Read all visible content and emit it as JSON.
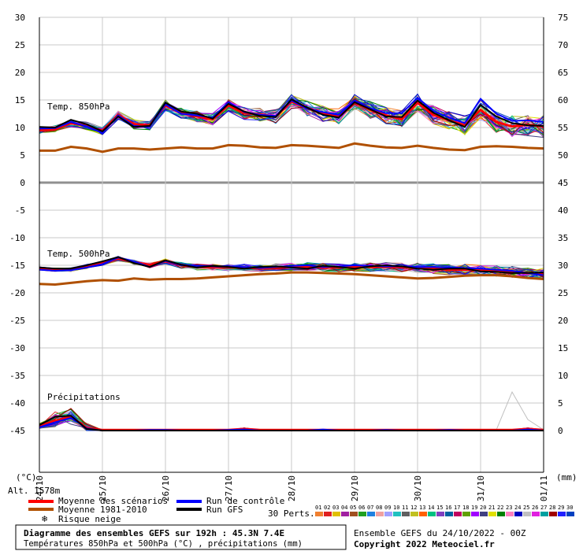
{
  "chart_data": {
    "type": "line",
    "title": "Diagramme des ensembles GEFS sur 192h : 45.3N 7.4E",
    "subtitle": "Températures 850hPa et 500hPa (°C) , précipitations (mm)",
    "run_info": "Ensemble GEFS du 24/10/2022 - 00Z",
    "copyright": "Copyright 2022 Meteociel.fr",
    "altitude": "Alt. 1578m",
    "ylabel_left": "(°C)",
    "ylabel_right": "(mm)",
    "panel_labels": {
      "t850": "Temp. 850hPa",
      "t500": "Temp. 500hPa",
      "precip": "Précipitations"
    },
    "x_tick_labels": [
      "24/10",
      "25/10",
      "26/10",
      "27/10",
      "28/10",
      "29/10",
      "30/10",
      "31/10",
      "01/11"
    ],
    "left_ticks": [
      30,
      25,
      20,
      15,
      10,
      5,
      0,
      -5,
      -10,
      -15,
      -20,
      -25,
      -30,
      -35,
      -40,
      -45
    ],
    "right_ticks": [
      75,
      70,
      65,
      60,
      55,
      50,
      45,
      40,
      35,
      30,
      25,
      20,
      15,
      10,
      5,
      0
    ],
    "ylim_left": [
      -45,
      30
    ],
    "x_hours": [
      0,
      6,
      12,
      18,
      24,
      30,
      36,
      42,
      48,
      54,
      60,
      66,
      72,
      78,
      84,
      90,
      96,
      102,
      108,
      114,
      120,
      126,
      132,
      138,
      144,
      150,
      156,
      162,
      168,
      174,
      180,
      186,
      192
    ],
    "series": [
      {
        "name": "Moyenne des scénarios",
        "role": "t850",
        "color": "#ff0000",
        "values": [
          9.5,
          9.7,
          10.8,
          10.3,
          9.4,
          12.3,
          10.6,
          10.4,
          14.0,
          12.6,
          12.0,
          11.5,
          14.0,
          12.6,
          12.4,
          12.0,
          14.7,
          13.5,
          12.5,
          12.0,
          14.5,
          13.2,
          12.2,
          11.5,
          14.5,
          12.3,
          11.3,
          10.4,
          13.2,
          11.0,
          10.2,
          10.5,
          10.2
        ]
      },
      {
        "name": "Moyenne 1981-2010",
        "role": "t850",
        "color": "#b05000",
        "values": [
          5.8,
          5.8,
          6.5,
          6.2,
          5.6,
          6.2,
          6.2,
          6.0,
          6.2,
          6.4,
          6.2,
          6.2,
          6.8,
          6.7,
          6.4,
          6.3,
          6.8,
          6.7,
          6.5,
          6.3,
          7.1,
          6.7,
          6.4,
          6.3,
          6.7,
          6.3,
          6.0,
          5.9,
          6.5,
          6.6,
          6.5,
          6.3,
          6.2
        ]
      },
      {
        "name": "Run de contrôle",
        "role": "t850",
        "color": "#0000ff",
        "values": [
          9.8,
          9.9,
          11.0,
          10.2,
          9.0,
          12.2,
          10.3,
          10.1,
          14.2,
          12.5,
          12.2,
          11.8,
          14.6,
          12.8,
          12.3,
          12.1,
          14.9,
          13.4,
          12.8,
          12.3,
          14.9,
          13.5,
          12.6,
          12.6,
          15.4,
          13.0,
          11.8,
          10.8,
          15.2,
          12.5,
          11.2,
          11.3,
          11.0
        ]
      },
      {
        "name": "Run GFS",
        "role": "t850",
        "color": "#000000",
        "values": [
          10.1,
          10.0,
          11.4,
          10.6,
          9.3,
          12.0,
          10.1,
          10.3,
          14.5,
          12.9,
          12.5,
          11.6,
          14.3,
          12.9,
          12.1,
          11.9,
          15.1,
          13.6,
          12.3,
          11.8,
          14.6,
          13.3,
          12.0,
          11.9,
          14.9,
          12.7,
          11.3,
          10.1,
          14.1,
          12.0,
          10.8,
          10.4,
          10.3
        ]
      },
      {
        "name": "Moyenne des scénarios",
        "role": "t500",
        "color": "#ff0000",
        "values": [
          -15.6,
          -15.8,
          -15.8,
          -15.2,
          -14.6,
          -13.8,
          -14.4,
          -15.0,
          -14.3,
          -15.0,
          -15.3,
          -15.4,
          -15.4,
          -15.4,
          -15.6,
          -15.4,
          -15.3,
          -15.2,
          -15.4,
          -15.4,
          -15.3,
          -15.3,
          -15.3,
          -15.4,
          -15.5,
          -15.6,
          -15.8,
          -15.8,
          -15.9,
          -16.0,
          -16.2,
          -16.4,
          -16.6
        ]
      },
      {
        "name": "Moyenne 1981-2010",
        "role": "t500",
        "color": "#b05000",
        "values": [
          -18.4,
          -18.5,
          -18.2,
          -17.9,
          -17.7,
          -17.8,
          -17.4,
          -17.6,
          -17.5,
          -17.5,
          -17.4,
          -17.2,
          -17.0,
          -16.8,
          -16.6,
          -16.5,
          -16.3,
          -16.3,
          -16.4,
          -16.5,
          -16.6,
          -16.8,
          -17.0,
          -17.2,
          -17.4,
          -17.3,
          -17.1,
          -16.9,
          -16.8,
          -16.8,
          -17.0,
          -17.3,
          -17.5
        ]
      },
      {
        "name": "Run de contrôle",
        "role": "t500",
        "color": "#0000ff",
        "values": [
          -15.8,
          -16.0,
          -15.9,
          -15.4,
          -14.8,
          -13.6,
          -14.3,
          -15.3,
          -14.2,
          -15.0,
          -15.1,
          -15.2,
          -15.3,
          -15.3,
          -15.5,
          -15.3,
          -15.1,
          -15.0,
          -15.3,
          -15.2,
          -15.0,
          -15.1,
          -15.2,
          -15.2,
          -15.3,
          -15.3,
          -15.4,
          -15.5,
          -15.6,
          -15.8,
          -16.0,
          -16.4,
          -16.8
        ]
      },
      {
        "name": "Run GFS",
        "role": "t500",
        "color": "#000000",
        "values": [
          -15.4,
          -15.6,
          -15.6,
          -15.0,
          -14.3,
          -13.5,
          -14.6,
          -15.3,
          -14.1,
          -14.9,
          -15.4,
          -15.1,
          -15.3,
          -15.6,
          -15.3,
          -15.2,
          -15.4,
          -15.6,
          -15.1,
          -15.3,
          -15.6,
          -15.2,
          -15.0,
          -15.2,
          -15.6,
          -15.8,
          -15.6,
          -15.6,
          -16.1,
          -16.2,
          -16.4,
          -16.4,
          -16.3
        ]
      },
      {
        "name": "Moyenne des scénarios",
        "role": "precip",
        "color": "#ff0000",
        "values": [
          0.8,
          1.8,
          2.5,
          0.5,
          0.1,
          0.1,
          0.1,
          0.1,
          0.1,
          0.1,
          0.1,
          0.1,
          0.1,
          0.3,
          0.1,
          0.1,
          0.1,
          0.1,
          0.1,
          0.1,
          0.1,
          0.1,
          0.1,
          0.1,
          0.1,
          0.1,
          0.1,
          0.1,
          0.1,
          0.1,
          0.1,
          0.3,
          0.1
        ]
      },
      {
        "name": "Run de contrôle",
        "role": "precip",
        "color": "#0000ff",
        "values": [
          0.6,
          1.5,
          2.3,
          0.4,
          0.0,
          0.0,
          0.0,
          0.1,
          0.1,
          0.0,
          0.0,
          0.0,
          0.1,
          0.2,
          0.0,
          0.0,
          0.0,
          0.0,
          0.2,
          0.0,
          0.0,
          0.0,
          0.1,
          0.0,
          0.0,
          0.0,
          0.1,
          0.0,
          0.0,
          0.0,
          0.0,
          0.2,
          0.0
        ]
      },
      {
        "name": "Run GFS",
        "role": "precip",
        "color": "#000000",
        "values": [
          1.0,
          2.5,
          2.7,
          0.3,
          0.0,
          0.0,
          0.0,
          0.0,
          0.0,
          0.0,
          0.0,
          0.0,
          0.0,
          0.0,
          0.0,
          0.0,
          0.0,
          0.0,
          0.0,
          0.0,
          0.0,
          0.0,
          0.0,
          0.0,
          0.0,
          0.0,
          0.0,
          0.0,
          0.0,
          0.0,
          0.0,
          0.0,
          0.0
        ]
      }
    ],
    "perturbation_colors": [
      "#f08030",
      "#e02020",
      "#e0c000",
      "#a020a0",
      "#a05020",
      "#20a020",
      "#2080e0",
      "#f0a0a0",
      "#a0a0ff",
      "#20c0c0",
      "#606060",
      "#c0c020",
      "#ff6000",
      "#00c080",
      "#8040c0",
      "#0060a0",
      "#c00060",
      "#60a000",
      "#a000ff",
      "#404080",
      "#e0e000",
      "#008000",
      "#ff80c0",
      "#0000c0",
      "#c0c0c0",
      "#e020e0",
      "#00a0a0",
      "#a00000",
      "#2020ff",
      "#0040c0"
    ],
    "legend": {
      "mean": "Moyenne des scénarios",
      "clim": "Moyenne 1981-2010",
      "snow": "Risque neige",
      "control": "Run de contrôle",
      "gfs": "Run GFS",
      "perts": "30 Perts.",
      "pert_numbers": [
        "01",
        "02",
        "03",
        "04",
        "05",
        "06",
        "07",
        "08",
        "09",
        "10",
        "11",
        "12",
        "13",
        "14",
        "15",
        "16",
        "17",
        "18",
        "19",
        "20",
        "21",
        "22",
        "23",
        "24",
        "25",
        "26",
        "27",
        "28",
        "29",
        "30"
      ]
    }
  }
}
